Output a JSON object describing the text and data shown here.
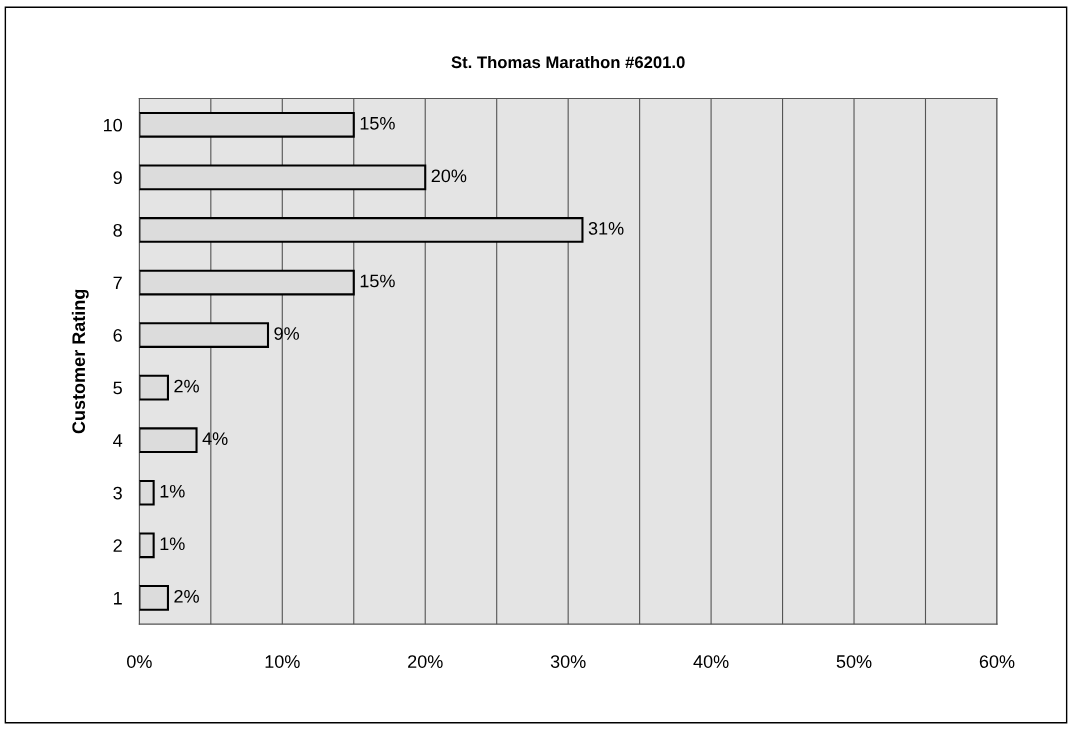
{
  "chart_data": {
    "type": "bar",
    "orientation": "horizontal",
    "title": "St. Thomas Marathon #6201.0",
    "ylabel": "Customer Rating",
    "categories": [
      "10",
      "9",
      "8",
      "7",
      "6",
      "5",
      "4",
      "3",
      "2",
      "1"
    ],
    "values": [
      15,
      20,
      31,
      15,
      9,
      2,
      4,
      1,
      1,
      2
    ],
    "value_labels": [
      "15%",
      "20%",
      "31%",
      "15%",
      "9%",
      "2%",
      "4%",
      "1%",
      "1%",
      "2%"
    ],
    "color": "#dcdcdc",
    "xlim": [
      0,
      60
    ],
    "xticks": [
      {
        "value": 0,
        "label": "0%"
      },
      {
        "value": 5,
        "label": null
      },
      {
        "value": 10,
        "label": "10%"
      },
      {
        "value": 15,
        "label": null
      },
      {
        "value": 20,
        "label": "20%"
      },
      {
        "value": 25,
        "label": null
      },
      {
        "value": 30,
        "label": "30%"
      },
      {
        "value": 35,
        "label": null
      },
      {
        "value": 40,
        "label": "40%"
      },
      {
        "value": 45,
        "label": null
      },
      {
        "value": 50,
        "label": "50%"
      },
      {
        "value": 55,
        "label": null
      },
      {
        "value": 60,
        "label": "60%"
      }
    ],
    "grid": "x",
    "legend": false
  }
}
